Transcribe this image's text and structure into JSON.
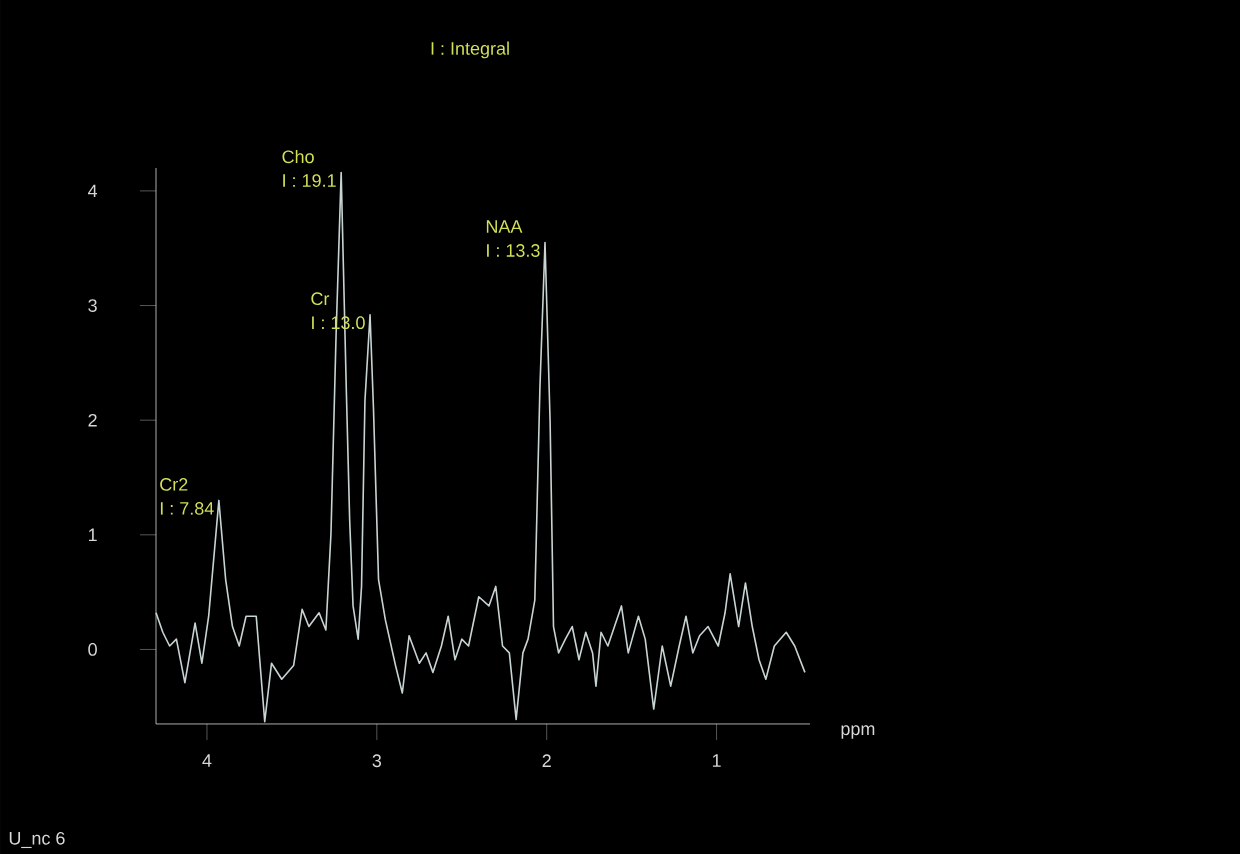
{
  "chart_data": {
    "type": "line",
    "title": "I : Integral",
    "xlabel": "ppm",
    "annotations": [
      {
        "text": "Cr2",
        "x": 3.93,
        "y": 1.3
      },
      {
        "text": "I : 7.84",
        "x": 3.93,
        "y": 1.3
      },
      {
        "text": "Cho",
        "x": 3.21,
        "y": 4.16
      },
      {
        "text": "I : 19.1",
        "x": 3.21,
        "y": 4.16
      },
      {
        "text": "Cr",
        "x": 3.04,
        "y": 2.92
      },
      {
        "text": "I : 13.0",
        "x": 3.04,
        "y": 2.92
      },
      {
        "text": "NAA",
        "x": 2.01,
        "y": 3.55
      },
      {
        "text": "I : 13.3",
        "x": 2.01,
        "y": 3.55
      },
      "U_nc 6"
    ],
    "x": [
      4.3,
      4.26,
      4.22,
      4.18,
      4.13,
      4.07,
      4.03,
      3.99,
      3.93,
      3.89,
      3.85,
      3.81,
      3.77,
      3.71,
      3.66,
      3.62,
      3.56,
      3.49,
      3.44,
      3.4,
      3.34,
      3.3,
      3.27,
      3.24,
      3.21,
      3.18,
      3.16,
      3.14,
      3.11,
      3.09,
      3.07,
      3.04,
      3.02,
      2.99,
      2.95,
      2.89,
      2.85,
      2.81,
      2.75,
      2.71,
      2.67,
      2.62,
      2.58,
      2.54,
      2.5,
      2.46,
      2.4,
      2.34,
      2.3,
      2.26,
      2.22,
      2.18,
      2.14,
      2.11,
      2.07,
      2.04,
      2.01,
      1.98,
      1.96,
      1.93,
      1.89,
      1.85,
      1.81,
      1.77,
      1.73,
      1.71,
      1.68,
      1.64,
      1.56,
      1.52,
      1.46,
      1.42,
      1.37,
      1.32,
      1.27,
      1.22,
      1.18,
      1.14,
      1.1,
      1.05,
      0.99,
      0.95,
      0.92,
      0.87,
      0.83,
      0.79,
      0.75,
      0.71,
      0.66,
      0.59,
      0.54,
      0.48
    ],
    "values": [
      0.32,
      0.15,
      0.03,
      0.09,
      -0.29,
      0.23,
      -0.12,
      0.29,
      1.3,
      0.61,
      0.2,
      0.03,
      0.29,
      0.29,
      -0.63,
      -0.12,
      -0.26,
      -0.14,
      0.35,
      0.2,
      0.32,
      0.17,
      1.01,
      2.74,
      4.16,
      2.28,
      1.13,
      0.38,
      0.09,
      0.55,
      2.17,
      2.92,
      2.11,
      0.61,
      0.26,
      -0.14,
      -0.38,
      0.12,
      -0.12,
      -0.03,
      -0.2,
      0.03,
      0.29,
      -0.09,
      0.09,
      0.03,
      0.46,
      0.38,
      0.55,
      0.03,
      -0.03,
      -0.61,
      -0.03,
      0.09,
      0.43,
      2.28,
      3.55,
      1.99,
      0.2,
      -0.03,
      0.09,
      0.2,
      -0.09,
      0.15,
      -0.03,
      -0.32,
      0.15,
      0.03,
      0.38,
      -0.03,
      0.29,
      0.09,
      -0.52,
      0.03,
      -0.32,
      0.03,
      0.29,
      -0.03,
      0.12,
      0.2,
      0.03,
      0.32,
      0.66,
      0.2,
      0.58,
      0.2,
      -0.09,
      -0.26,
      0.03,
      0.15,
      0.03,
      -0.2
    ],
    "color": "#c8d4d4",
    "xlim": [
      4.3,
      0.45
    ],
    "ylim": [
      -0.65,
      4.2
    ],
    "xticks": [
      4,
      3,
      2,
      1
    ],
    "yticks": [
      0,
      1,
      2,
      3,
      4
    ]
  }
}
